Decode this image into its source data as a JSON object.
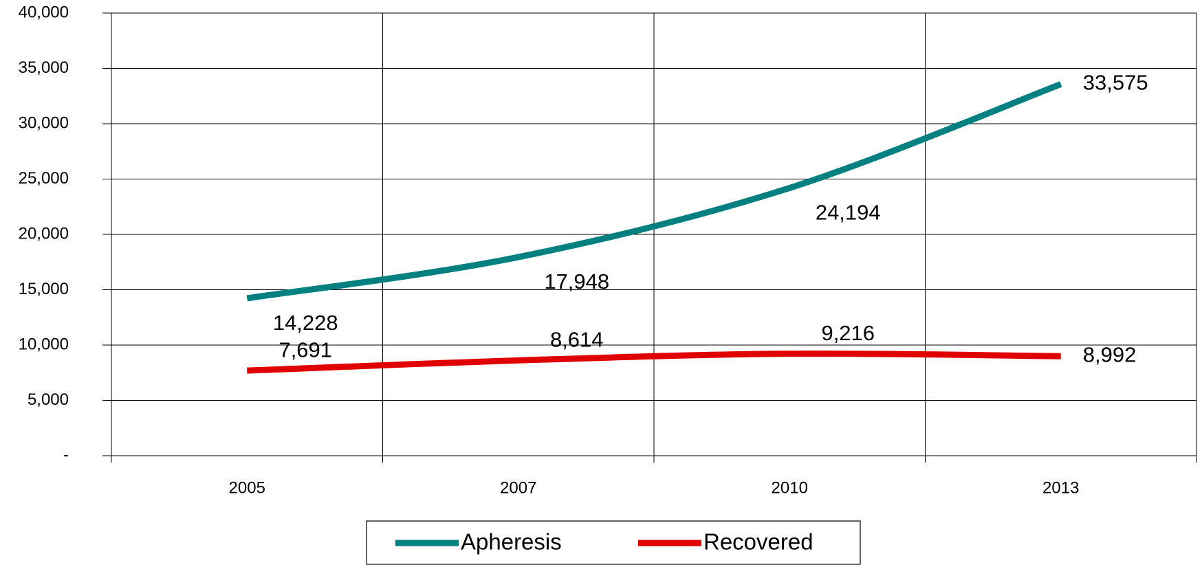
{
  "chart_data": {
    "type": "line",
    "categories": [
      "2005",
      "2007",
      "2010",
      "2013"
    ],
    "series": [
      {
        "name": "Apheresis",
        "color": "#008080",
        "values": [
          14228,
          17948,
          24194,
          33575
        ],
        "value_labels": [
          "14,228",
          "17,948",
          "24,194",
          "33,575"
        ]
      },
      {
        "name": "Recovered",
        "color": "#e00000",
        "values": [
          7691,
          8614,
          9216,
          8992
        ],
        "value_labels": [
          "7,691",
          "8,614",
          "9,216",
          "8,992"
        ]
      }
    ],
    "ylim": [
      0,
      40000
    ],
    "yticks": [
      {
        "value": 0,
        "label": "-"
      },
      {
        "value": 5000,
        "label": "5,000"
      },
      {
        "value": 10000,
        "label": "10,000"
      },
      {
        "value": 15000,
        "label": "15,000"
      },
      {
        "value": 20000,
        "label": "20,000"
      },
      {
        "value": 25000,
        "label": "25,000"
      },
      {
        "value": 30000,
        "label": "30,000"
      },
      {
        "value": 35000,
        "label": "35,000"
      },
      {
        "value": 40000,
        "label": "40,000"
      }
    ],
    "grid": true,
    "legend": "bottom"
  }
}
